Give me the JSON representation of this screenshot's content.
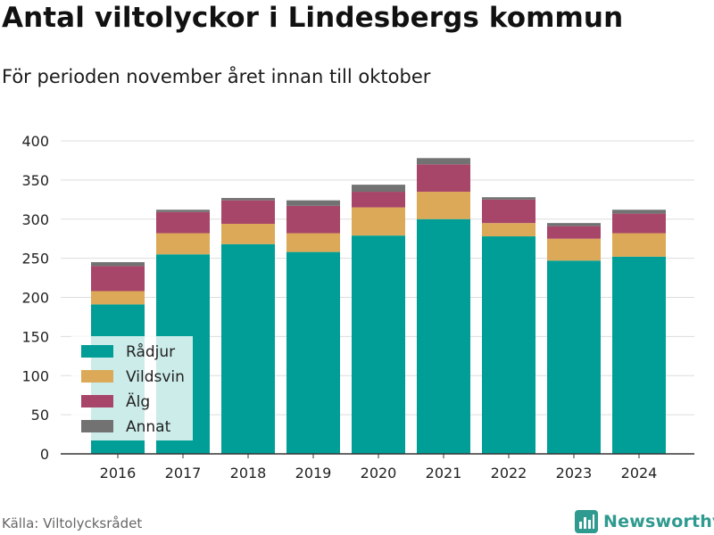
{
  "header": {
    "title": "Antal viltolyckor i Lindesbergs kommun",
    "subtitle": "För perioden november året innan till oktober"
  },
  "footer": {
    "source": "Källa: Viltolycksrådet",
    "brand": "Newsworthy",
    "brand_icon": "bar-chart-logo-icon"
  },
  "colors": {
    "radjur": "#009e96",
    "vildsvin": "#dba957",
    "alg": "#a8466a",
    "annat": "#727272",
    "brand": "#2f9a8f"
  },
  "chart_data": {
    "type": "bar",
    "stacked": true,
    "title": "Antal viltolyckor i Lindesbergs kommun",
    "subtitle": "För perioden november året innan till oktober",
    "categories": [
      "2016",
      "2017",
      "2018",
      "2019",
      "2020",
      "2021",
      "2022",
      "2023",
      "2024"
    ],
    "series": [
      {
        "name": "Rådjur",
        "color": "#009e96",
        "values": [
          191,
          255,
          268,
          258,
          279,
          300,
          278,
          247,
          252
        ]
      },
      {
        "name": "Vildsvin",
        "color": "#dba957",
        "values": [
          17,
          27,
          26,
          24,
          36,
          35,
          17,
          28,
          30
        ]
      },
      {
        "name": "Älg",
        "color": "#a8466a",
        "values": [
          32,
          27,
          30,
          35,
          20,
          35,
          30,
          16,
          25
        ]
      },
      {
        "name": "Annat",
        "color": "#727272",
        "values": [
          5,
          3,
          3,
          7,
          9,
          8,
          3,
          4,
          5
        ]
      }
    ],
    "yticks": [
      0,
      50,
      100,
      150,
      200,
      250,
      300,
      350,
      400
    ],
    "ylim": [
      0,
      400
    ],
    "xlabel": "",
    "ylabel": "",
    "grid": true,
    "legend": "bottom-left"
  }
}
